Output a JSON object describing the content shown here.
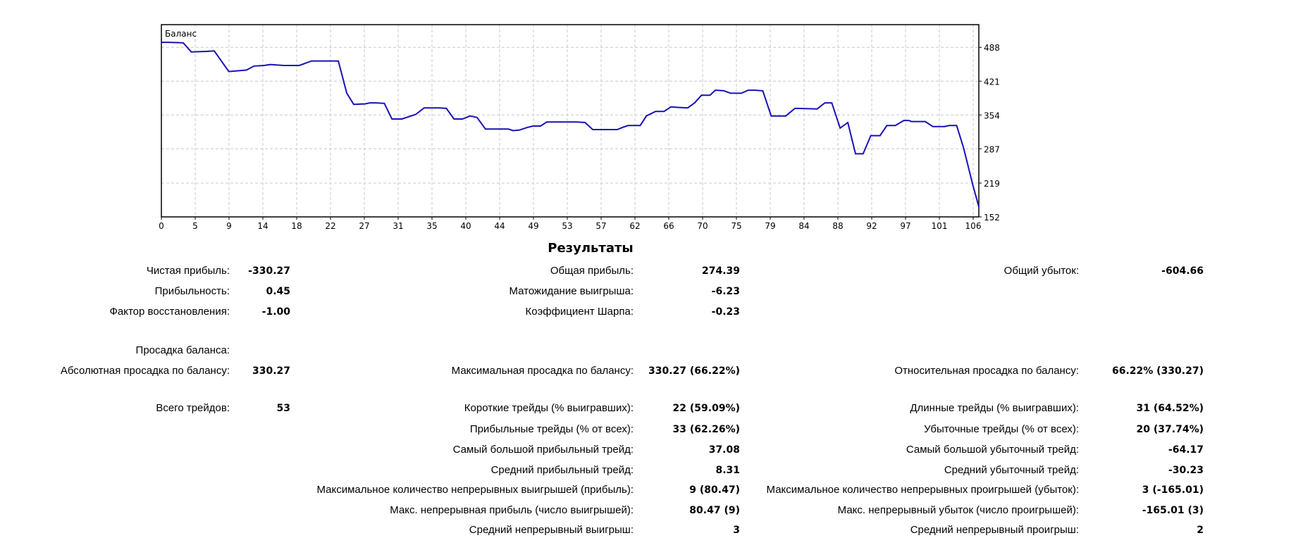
{
  "chart_data": {
    "type": "line",
    "title": "Баланс",
    "xlabel": "",
    "ylabel": "",
    "xlim": [
      0,
      106.7
    ],
    "ylim": [
      152,
      533
    ],
    "grid": true,
    "x_ticks": [
      "0",
      "5",
      "9",
      "14",
      "18",
      "22",
      "27",
      "31",
      "35",
      "40",
      "44",
      "49",
      "53",
      "57",
      "62",
      "66",
      "70",
      "75",
      "79",
      "84",
      "88",
      "92",
      "97",
      "101",
      "106"
    ],
    "y_ticks": [
      488,
      421,
      354,
      287,
      219,
      152
    ],
    "series": [
      {
        "name": "Баланс",
        "color": "#1a10b8",
        "points": [
          [
            0,
            498
          ],
          [
            0.9,
            498
          ],
          [
            2.85,
            497
          ],
          [
            3.9,
            479
          ],
          [
            5.9,
            480
          ],
          [
            6.9,
            481
          ],
          [
            8.8,
            440
          ],
          [
            11.1,
            443
          ],
          [
            12.1,
            451
          ],
          [
            13.4,
            452
          ],
          [
            14.2,
            454
          ],
          [
            16,
            452
          ],
          [
            18,
            452
          ],
          [
            19.6,
            461
          ],
          [
            23.1,
            461
          ],
          [
            24.2,
            397
          ],
          [
            25.1,
            375
          ],
          [
            26.6,
            376
          ],
          [
            27.2,
            378
          ],
          [
            28,
            378
          ],
          [
            29.1,
            377
          ],
          [
            30.1,
            346
          ],
          [
            31.4,
            346
          ],
          [
            33.2,
            355
          ],
          [
            34.3,
            368
          ],
          [
            36.3,
            368
          ],
          [
            37.2,
            367
          ],
          [
            38.2,
            346
          ],
          [
            39.3,
            346
          ],
          [
            40.3,
            352
          ],
          [
            41.2,
            349
          ],
          [
            42.3,
            326
          ],
          [
            45.3,
            326
          ],
          [
            45.9,
            323
          ],
          [
            46.7,
            324
          ],
          [
            47.7,
            329
          ],
          [
            48.5,
            332
          ],
          [
            49.5,
            332
          ],
          [
            50.3,
            340
          ],
          [
            54.3,
            340
          ],
          [
            55.3,
            339
          ],
          [
            56.3,
            325
          ],
          [
            59.5,
            325
          ],
          [
            60.3,
            330
          ],
          [
            60.9,
            333
          ],
          [
            62.5,
            333
          ],
          [
            63.3,
            352
          ],
          [
            64.5,
            361
          ],
          [
            65.6,
            361
          ],
          [
            66.5,
            370
          ],
          [
            67.4,
            369
          ],
          [
            68.7,
            368
          ],
          [
            69.6,
            378
          ],
          [
            70.5,
            393
          ],
          [
            71.6,
            393
          ],
          [
            72.3,
            403
          ],
          [
            73.4,
            402
          ],
          [
            74.3,
            397
          ],
          [
            75.7,
            397
          ],
          [
            76.6,
            403
          ],
          [
            77.5,
            403
          ],
          [
            78.5,
            402
          ],
          [
            79.6,
            352
          ],
          [
            81.5,
            352
          ],
          [
            82.7,
            367
          ],
          [
            85.6,
            366
          ],
          [
            86.6,
            378
          ],
          [
            87.5,
            378
          ],
          [
            88.6,
            328
          ],
          [
            89.6,
            339
          ],
          [
            90.6,
            277
          ],
          [
            91.6,
            277
          ],
          [
            92.6,
            313
          ],
          [
            93.8,
            313
          ],
          [
            94.7,
            333
          ],
          [
            95.8,
            333
          ],
          [
            96.9,
            343
          ],
          [
            97.6,
            343
          ],
          [
            97.9,
            341
          ],
          [
            99.7,
            341
          ],
          [
            100.7,
            331
          ],
          [
            102.2,
            331
          ],
          [
            102.8,
            333
          ],
          [
            103.8,
            333
          ],
          [
            104.7,
            289
          ],
          [
            105.9,
            216
          ],
          [
            106.7,
            172
          ]
        ]
      }
    ]
  },
  "results": {
    "title": "Результаты",
    "rows": [
      [
        {
          "label": "Чистая прибыль:",
          "value": "-330.27"
        },
        {
          "label": "Общая прибыль:",
          "value": "274.39"
        },
        {
          "label": "Общий убыток:",
          "value": "-604.66"
        }
      ],
      [
        {
          "label": "Прибыльность:",
          "value": "0.45"
        },
        {
          "label": "Матожидание выигрыша:",
          "value": "-6.23"
        },
        null
      ],
      [
        {
          "label": "Фактор восстановления:",
          "value": "-1.00"
        },
        {
          "label": "Коэффициент Шарпа:",
          "value": "-0.23"
        },
        null
      ],
      [
        {
          "label": "Просадка баланса:",
          "value": ""
        },
        null,
        null
      ],
      [
        {
          "label": "Абсолютная просадка по балансу:",
          "value": "330.27"
        },
        {
          "label": "Максимальная просадка по балансу:",
          "value": "330.27 (66.22%)"
        },
        {
          "label": "Относительная просадка по балансу:",
          "value": "66.22% (330.27)"
        }
      ],
      [
        {
          "label": "Всего трейдов:",
          "value": "53"
        },
        {
          "label": "Короткие трейды (% выигравших):",
          "value": "22 (59.09%)"
        },
        {
          "label": "Длинные трейды (% выигравших):",
          "value": "31 (64.52%)"
        }
      ],
      [
        null,
        {
          "label": "Прибыльные трейды (% от всех):",
          "value": "33 (62.26%)"
        },
        {
          "label": "Убыточные трейды (% от всех):",
          "value": "20 (37.74%)"
        }
      ],
      [
        null,
        {
          "label": "Самый большой прибыльный трейд:",
          "value": "37.08"
        },
        {
          "label": "Самый большой убыточный трейд:",
          "value": "-64.17"
        }
      ],
      [
        null,
        {
          "label": "Средний прибыльный трейд:",
          "value": "8.31"
        },
        {
          "label": "Средний убыточный трейд:",
          "value": "-30.23"
        }
      ],
      [
        null,
        {
          "label": "Максимальное количество непрерывных выигрышей (прибыль):",
          "value": "9 (80.47)"
        },
        {
          "label": "Максимальное количество непрерывных проигрышей (убыток):",
          "value": "3 (-165.01)"
        }
      ],
      [
        null,
        {
          "label": "Макс. непрерывная прибыль (число выигрышей):",
          "value": "80.47 (9)"
        },
        {
          "label": "Макс. непрерывный убыток (число проигрышей):",
          "value": "-165.01 (3)"
        }
      ],
      [
        null,
        {
          "label": "Средний непрерывный выигрыш:",
          "value": "3"
        },
        {
          "label": "Средний непрерывный проигрыш:",
          "value": "2"
        }
      ]
    ]
  }
}
